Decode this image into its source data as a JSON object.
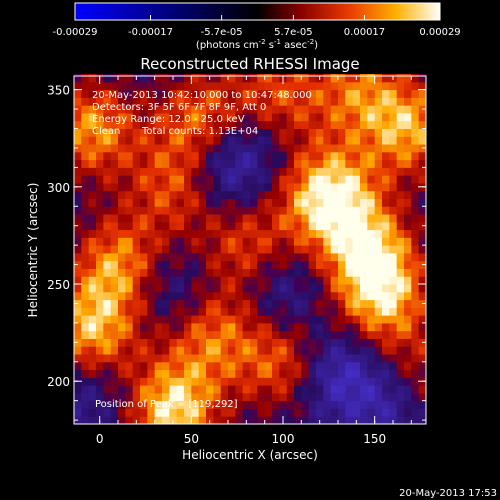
{
  "chart_data": {
    "type": "heatmap",
    "title": "Reconstructed RHESSI Image",
    "xlabel": "Heliocentric X (arcsec)",
    "ylabel": "Heliocentric Y (arcsec)",
    "xlim": [
      -14,
      178
    ],
    "ylim": [
      178,
      357
    ],
    "x_ticks": [
      0,
      50,
      100,
      150
    ],
    "y_ticks": [
      200,
      250,
      300,
      350
    ],
    "colorbar": {
      "ticks": [
        "-0.00029",
        "-0.00017",
        "-5.7e-05",
        "5.7e-05",
        "0.00017",
        "0.00029"
      ],
      "values": [
        -0.00029,
        -0.00017,
        -5.7e-05,
        5.7e-05,
        0.00017,
        0.00029
      ],
      "range": [
        -0.00029,
        0.00029
      ],
      "unit_text": "(photons cm",
      "unit_exp1": "-2",
      "unit_mid": " s",
      "unit_exp2": "-1",
      "unit_mid2": " asec",
      "unit_exp3": "-2",
      "unit_end": ")"
    },
    "annotations": [
      "20-May-2013 10:42:10.000 to 10:47:48.000",
      "Detectors: 3F 5F 6F 7F 8F 9F, Att 0",
      "Energy Range: 12.0 - 25.0 keV",
      "Clean",
      "Total counts: 1.13E+04"
    ],
    "peak_label": "Position of Peak = [119,292]",
    "peak": [
      119,
      292
    ],
    "hotspots": [
      {
        "x": 125,
        "y": 295,
        "v": 1.0
      },
      {
        "x": 148,
        "y": 265,
        "v": 0.75
      },
      {
        "x": 170,
        "y": 330,
        "v": 0.7
      },
      {
        "x": 155,
        "y": 240,
        "v": 0.6
      },
      {
        "x": 40,
        "y": 185,
        "v": 0.9
      },
      {
        "x": -5,
        "y": 225,
        "v": 0.75
      },
      {
        "x": 60,
        "y": 225,
        "v": 0.55
      },
      {
        "x": 100,
        "y": 210,
        "v": 0.55
      },
      {
        "x": 10,
        "y": 260,
        "v": 0.65
      },
      {
        "x": -5,
        "y": 330,
        "v": 0.7
      },
      {
        "x": 55,
        "y": 335,
        "v": 0.55
      },
      {
        "x": 95,
        "y": 345,
        "v": 0.55
      },
      {
        "x": 140,
        "y": 350,
        "v": 0.5
      },
      {
        "x": 80,
        "y": 270,
        "v": 0.45
      },
      {
        "x": 175,
        "y": 200,
        "v": 0.4
      },
      {
        "x": 40,
        "y": 300,
        "v": 0.45
      }
    ],
    "coldspots": [
      {
        "x": 70,
        "y": 310,
        "v": -0.55
      },
      {
        "x": 130,
        "y": 205,
        "v": -0.6
      },
      {
        "x": 160,
        "y": 190,
        "v": -0.5
      },
      {
        "x": 40,
        "y": 245,
        "v": -0.35
      },
      {
        "x": 100,
        "y": 245,
        "v": -0.35
      },
      {
        "x": 85,
        "y": 330,
        "v": -0.3
      },
      {
        "x": -5,
        "y": 195,
        "v": -0.3
      }
    ]
  },
  "footer": {
    "timestamp": "20-May-2013 17:53"
  }
}
